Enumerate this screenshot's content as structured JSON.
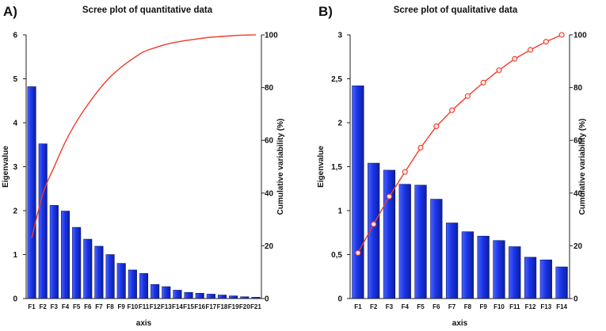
{
  "chart_data": [
    {
      "panel": "A)",
      "type": "bar",
      "title": "Scree plot of quantitative data",
      "xlabel": "axis",
      "ylabel": "Eigenvalue",
      "y2label": "Cumulative variability (%)",
      "categories": [
        "F1",
        "F2",
        "F3",
        "F4",
        "F5",
        "F6",
        "F7",
        "F8",
        "F9",
        "F10",
        "F11",
        "F12",
        "F13",
        "F14",
        "F15",
        "F16",
        "F17",
        "F18",
        "F19",
        "F20",
        "F21"
      ],
      "ylim": [
        0,
        6
      ],
      "yticks": [
        "0",
        "1",
        "2",
        "3",
        "4",
        "5",
        "6"
      ],
      "y2lim": [
        0,
        100
      ],
      "y2ticks": [
        "0",
        "20",
        "40",
        "60",
        "80",
        "100"
      ],
      "bar_color": "#1a35e8",
      "line_color": "#f03a2a",
      "line_markers": false,
      "series": [
        {
          "type": "bar",
          "axis": "left",
          "values": [
            4.82,
            3.52,
            2.12,
            1.99,
            1.62,
            1.35,
            1.19,
            1.0,
            0.8,
            0.65,
            0.57,
            0.32,
            0.27,
            0.19,
            0.14,
            0.12,
            0.1,
            0.08,
            0.06,
            0.04,
            0.03
          ]
        },
        {
          "type": "line",
          "axis": "right",
          "values": [
            23.0,
            39.8,
            49.9,
            59.4,
            67.1,
            73.5,
            79.2,
            84.0,
            87.8,
            90.9,
            93.6,
            95.1,
            96.4,
            97.3,
            98.0,
            98.6,
            99.1,
            99.4,
            99.7,
            99.9,
            100.0
          ]
        }
      ]
    },
    {
      "panel": "B)",
      "type": "bar",
      "title": "Scree plot of qualitative data",
      "xlabel": "axis",
      "ylabel": "Eigenvalue",
      "y2label": "Cumulative variability (%)",
      "categories": [
        "F1",
        "F2",
        "F3",
        "F4",
        "F5",
        "F6",
        "F7",
        "F8",
        "F9",
        "F10",
        "F11",
        "F12",
        "F13",
        "F14"
      ],
      "ylim": [
        0,
        3
      ],
      "yticks": [
        "0",
        "0,5",
        "1",
        "1,5",
        "2",
        "2,5",
        "3"
      ],
      "y2lim": [
        0,
        100
      ],
      "y2ticks": [
        "0",
        "20",
        "40",
        "60",
        "80",
        "100"
      ],
      "bar_color": "#1a35e8",
      "line_color": "#f03a2a",
      "line_markers": true,
      "series": [
        {
          "type": "bar",
          "axis": "left",
          "values": [
            2.42,
            1.54,
            1.46,
            1.3,
            1.29,
            1.13,
            0.86,
            0.76,
            0.71,
            0.66,
            0.59,
            0.47,
            0.44,
            0.36
          ]
        },
        {
          "type": "line",
          "axis": "right",
          "values": [
            17.3,
            28.2,
            38.7,
            48.0,
            57.2,
            65.3,
            71.4,
            76.8,
            81.9,
            86.6,
            90.9,
            94.3,
            97.4,
            100.0
          ]
        }
      ]
    }
  ]
}
